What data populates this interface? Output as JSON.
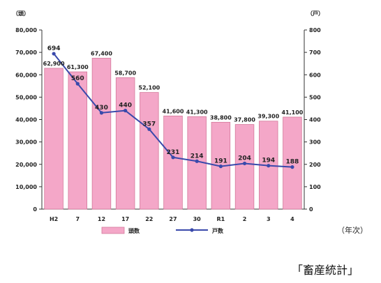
{
  "chart_data": {
    "type": "bar",
    "categories": [
      "H2",
      "7",
      "12",
      "17",
      "22",
      "27",
      "30",
      "R1",
      "2",
      "3",
      "4"
    ],
    "series": [
      {
        "name": "頭数",
        "type": "bar",
        "axis": "left",
        "color": "#f4a7c8",
        "values": [
          62900,
          61300,
          67400,
          58700,
          52100,
          41600,
          41300,
          38800,
          37800,
          39300,
          41100
        ],
        "labels": [
          "62,900",
          "61,300",
          "67,400",
          "58,700",
          "52,100",
          "41,600",
          "41,300",
          "38,800",
          "37,800",
          "39,300",
          "41,100"
        ]
      },
      {
        "name": "戸数",
        "type": "line",
        "axis": "right",
        "color": "#3949ab",
        "values": [
          694,
          560,
          430,
          440,
          357,
          231,
          214,
          191,
          204,
          194,
          188
        ],
        "labels": [
          "694",
          "560",
          "430",
          "440",
          "357",
          "231",
          "214",
          "191",
          "204",
          "194",
          "188"
        ]
      }
    ],
    "yleft": {
      "unit": "（頭）",
      "ylim": [
        0,
        80000
      ],
      "ticks": [
        "0",
        "10,000",
        "20,000",
        "30,000",
        "40,000",
        "50,000",
        "60,000",
        "70,000",
        "80,000"
      ]
    },
    "yright": {
      "unit": "（戸）",
      "ylim": [
        0,
        800
      ],
      "ticks": [
        "0",
        "100",
        "200",
        "300",
        "400",
        "500",
        "600",
        "700",
        "800"
      ]
    },
    "xunit": "（年次）",
    "legend": "bottom"
  },
  "source": "「畜産統計」"
}
